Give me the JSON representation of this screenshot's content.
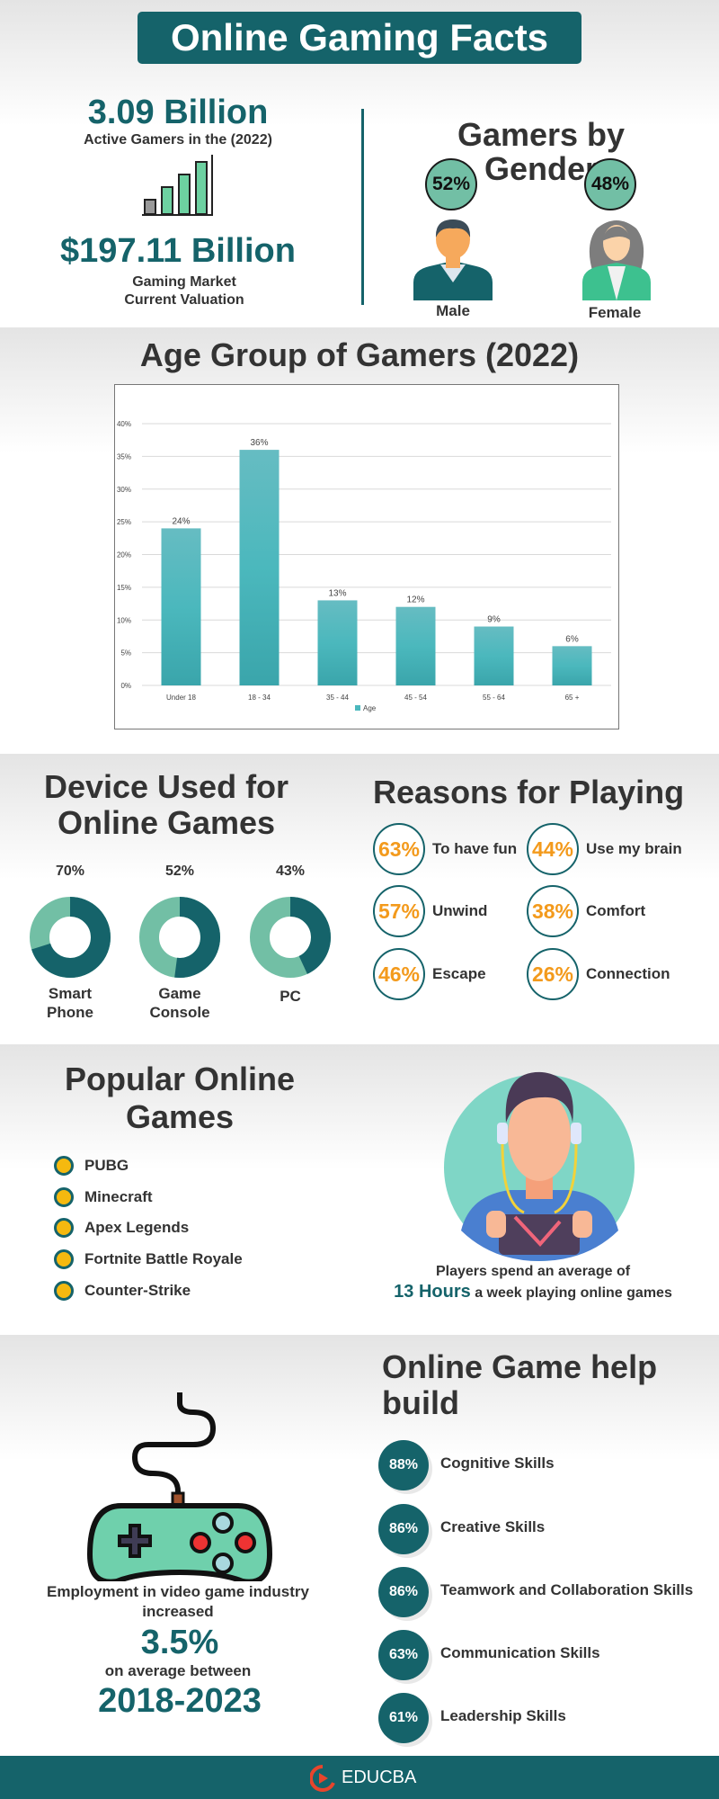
{
  "title": "Online Gaming Facts",
  "stats": {
    "gamers_value": "3.09 Billion",
    "gamers_label": "Active Gamers in the (2022)",
    "market_value": "$197.11 Billion",
    "market_label_1": "Gaming Market",
    "market_label_2": "Current Valuation"
  },
  "gender": {
    "title_1": "Gamers by",
    "title_2": "Gender",
    "male_pct": "52%",
    "male_label": "Male",
    "female_pct": "48%",
    "female_label": "Female"
  },
  "age": {
    "title": "Age Group of Gamers (2022)"
  },
  "chart_data": {
    "type": "bar",
    "title": "",
    "categories": [
      "Under 18",
      "18 - 34",
      "35 - 44",
      "45 - 54",
      "55 - 64",
      "65 +"
    ],
    "series": [
      {
        "name": "Age",
        "values": [
          24,
          36,
          13,
          12,
          9,
          6
        ]
      }
    ],
    "data_labels": [
      "24%",
      "36%",
      "13%",
      "12%",
      "9%",
      "6%"
    ],
    "yticks": [
      "0%",
      "5%",
      "10%",
      "15%",
      "20%",
      "25%",
      "30%",
      "35%",
      "40%"
    ],
    "ylim": [
      0,
      40
    ],
    "grid": true,
    "legend": "bottom",
    "color": "#4bb8bd"
  },
  "devices": {
    "title_1": "Device Used for",
    "title_2": "Online Games",
    "items": [
      {
        "pct": "70%",
        "value": 70,
        "label_1": "Smart",
        "label_2": "Phone"
      },
      {
        "pct": "52%",
        "value": 52,
        "label_1": "Game",
        "label_2": "Console"
      },
      {
        "pct": "43%",
        "value": 43,
        "label_1": "PC",
        "label_2": ""
      }
    ],
    "colors": {
      "main": "#15636a",
      "rest": "#72bfa5"
    }
  },
  "reasons": {
    "title": "Reasons for Playing",
    "items": [
      {
        "pct": "63%",
        "label": "To have fun"
      },
      {
        "pct": "44%",
        "label": "Use my brain"
      },
      {
        "pct": "57%",
        "label": "Unwind"
      },
      {
        "pct": "38%",
        "label": "Comfort"
      },
      {
        "pct": "46%",
        "label": "Escape"
      },
      {
        "pct": "26%",
        "label": "Connection"
      }
    ]
  },
  "popular": {
    "title_1": "Popular Online",
    "title_2": "Games",
    "items": [
      "PUBG",
      "Minecraft",
      "Apex Legends",
      "Fortnite Battle Royale",
      "Counter-Strike"
    ],
    "caption_1": "Players spend an average of",
    "caption_hours": "13 Hours",
    "caption_2": " a week playing online games"
  },
  "employment": {
    "line_1": "Employment in video game industry",
    "line_2": "increased",
    "value": "3.5%",
    "line_3": "on average between",
    "years": "2018-2023"
  },
  "skills": {
    "title_1": "Online Game help",
    "title_2": "build",
    "items": [
      {
        "pct": "88%",
        "label": "Cognitive Skills"
      },
      {
        "pct": "86%",
        "label": "Creative Skills"
      },
      {
        "pct": "86%",
        "label": "Teamwork and Collaboration Skills"
      },
      {
        "pct": "63%",
        "label": "Communication Skills"
      },
      {
        "pct": "61%",
        "label": "Leadership Skills"
      }
    ]
  },
  "footer": {
    "brand": "EDUCBA"
  },
  "colors": {
    "teal": "#15636a",
    "green": "#72bfa5",
    "orange": "#f39a1c",
    "bar": "#4bb8bd"
  }
}
